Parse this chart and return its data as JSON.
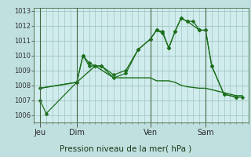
{
  "background_color": "#c0e0e0",
  "plot_bg_color": "#d0ecec",
  "grid_color": "#99bbbb",
  "line_color": "#1a6e1a",
  "title": "Pression niveau de la mer( hPa )",
  "ylim": [
    1005.5,
    1013.2
  ],
  "yticks": [
    1006,
    1007,
    1008,
    1009,
    1010,
    1011,
    1012,
    1013
  ],
  "day_labels": [
    "Jeu",
    "Dim",
    "Ven",
    "Sam"
  ],
  "day_positions": [
    0,
    12,
    36,
    54
  ],
  "xlim": [
    -2,
    68
  ],
  "line1_x": [
    0,
    2,
    12,
    14,
    16,
    18,
    20,
    24,
    28,
    32,
    36,
    38,
    40,
    42,
    44,
    46,
    48,
    50,
    52,
    54,
    56,
    60,
    64,
    66
  ],
  "line1_y": [
    1007.0,
    1006.1,
    1008.2,
    1010.0,
    1009.5,
    1009.3,
    1009.3,
    1008.7,
    1009.0,
    1010.4,
    1011.1,
    1011.7,
    1011.6,
    1010.5,
    1011.6,
    1012.5,
    1012.3,
    1012.3,
    1011.7,
    1011.7,
    1009.3,
    1007.4,
    1007.2,
    1007.2
  ],
  "line2_x": [
    0,
    12,
    14,
    16,
    18,
    20,
    24,
    28,
    32,
    36,
    38,
    40,
    42,
    44,
    46,
    48,
    52,
    54,
    56,
    60,
    64
  ],
  "line2_y": [
    1007.8,
    1008.2,
    1010.0,
    1009.3,
    1009.3,
    1009.3,
    1008.5,
    1008.8,
    1010.4,
    1011.1,
    1011.7,
    1011.5,
    1010.5,
    1011.6,
    1012.5,
    1012.3,
    1011.7,
    1011.7,
    1009.3,
    1007.4,
    1007.2
  ],
  "line3_x": [
    0,
    12,
    18,
    24,
    28,
    32,
    36,
    38,
    40,
    42,
    44,
    46,
    48,
    52,
    54,
    56,
    60,
    64,
    66
  ],
  "line3_y": [
    1007.8,
    1008.2,
    1009.3,
    1008.5,
    1008.5,
    1008.5,
    1008.5,
    1008.3,
    1008.3,
    1008.3,
    1008.2,
    1008.0,
    1007.9,
    1007.8,
    1007.8,
    1007.7,
    1007.5,
    1007.3,
    1007.3
  ]
}
